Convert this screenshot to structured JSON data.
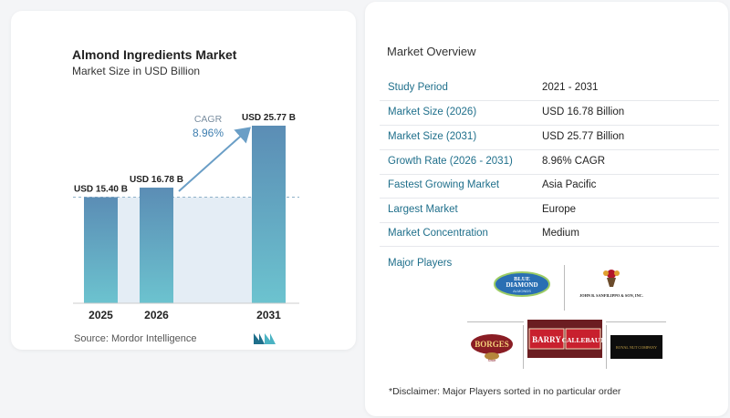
{
  "chart_data": {
    "type": "bar",
    "title": "Almond Ingredients Market",
    "subtitle": "Market Size in USD Billion",
    "categories": [
      "2025",
      "2026",
      "2031"
    ],
    "values": [
      15.4,
      16.78,
      25.77
    ],
    "value_labels": [
      "USD 15.40 B",
      "USD 16.78 B",
      "USD 25.77 B"
    ],
    "cagr_label": "CAGR",
    "cagr_value": "8.96%",
    "ylim": [
      0,
      25.77
    ],
    "grid": false,
    "colors": {
      "bar_top": "#5b8db5",
      "bar_bottom": "#6cc3cf",
      "shade": "#e4edf5",
      "arrow": "#6a9ec6",
      "dash": "#8fb2c9"
    }
  },
  "source_text": "Source:  Mordor Intelligence",
  "overview": {
    "title": "Market Overview",
    "rows": [
      {
        "label": "Study Period",
        "value": "2021 - 2031"
      },
      {
        "label": "Market Size (2026)",
        "value": "USD 16.78 Billion"
      },
      {
        "label": "Market Size (2031)",
        "value": "USD 25.77 Billion"
      },
      {
        "label": "Growth Rate (2026 - 2031)",
        "value": "8.96% CAGR"
      },
      {
        "label": "Fastest Growing Market",
        "value": "Asia Pacific"
      },
      {
        "label": "Largest Market",
        "value": "Europe"
      },
      {
        "label": "Market Concentration",
        "value": "Medium"
      }
    ],
    "players_title": "Major Players",
    "players": [
      {
        "name": "Blue Diamond Almonds",
        "lines": [
          "BLUE",
          "DIAMOND",
          "ALMONDS"
        ]
      },
      {
        "name": "John B. Sanfilippo & Son, Inc.",
        "text": "JOHN B. SANFILIPPO & SON, INC."
      },
      {
        "name": "Borges",
        "text": "BORGES",
        "tagline": "Since"
      },
      {
        "name": "Barry Callebaut",
        "parts": [
          "BARRY",
          "CALLEBAUT"
        ]
      },
      {
        "name": "Royal Nut Company",
        "text": "ROYAL NUT COMPANY"
      }
    ],
    "disclaimer": "*Disclaimer: Major Players sorted in no particular order"
  },
  "icons": {
    "source_logo": "mordor-intelligence-logo-icon"
  }
}
